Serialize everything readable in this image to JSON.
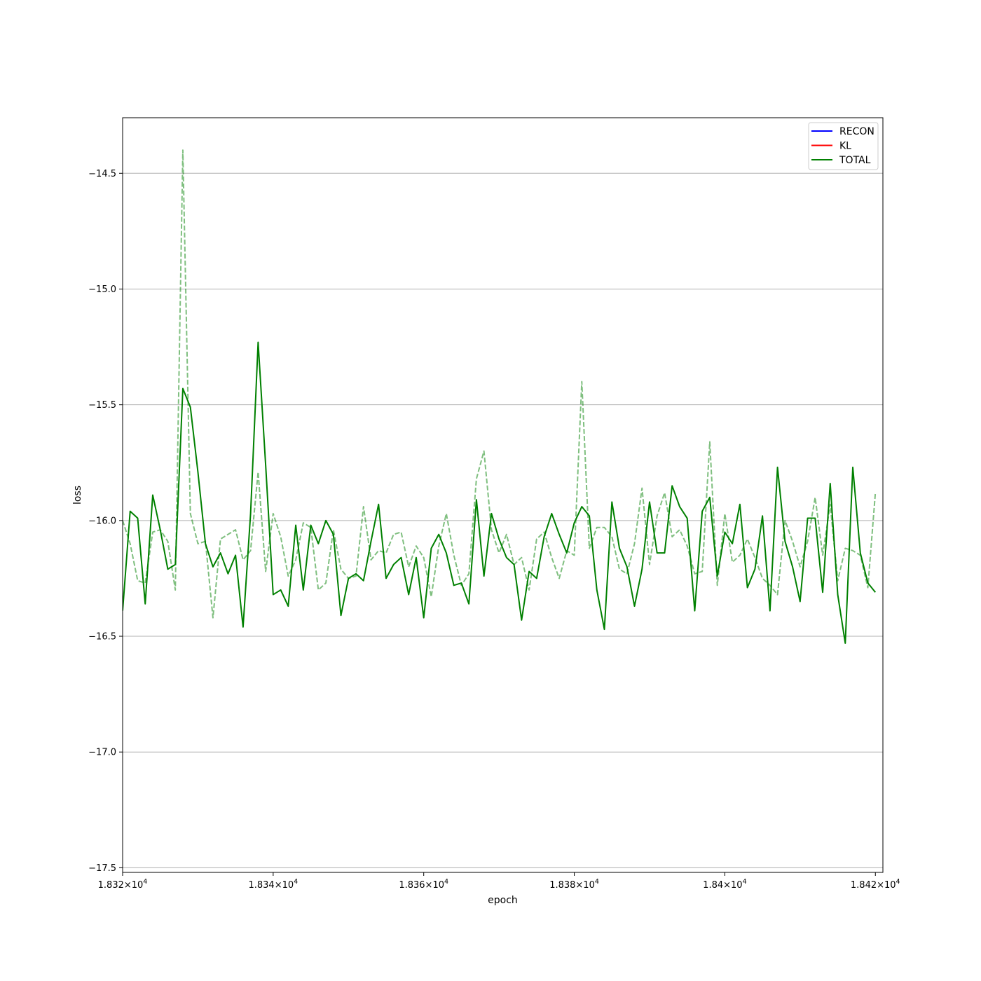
{
  "chart_data": {
    "type": "line",
    "title": "",
    "xlabel": "epoch",
    "ylabel": "loss",
    "xlim": [
      18320,
      18421
    ],
    "ylim": [
      -17.52,
      -14.26
    ],
    "grid": "y",
    "legend_position": "top-right",
    "x_ticks": [
      {
        "value": 18320,
        "mantissa": "1.832",
        "exponent": "4"
      },
      {
        "value": 18340,
        "mantissa": "1.834",
        "exponent": "4"
      },
      {
        "value": 18360,
        "mantissa": "1.836",
        "exponent": "4"
      },
      {
        "value": 18380,
        "mantissa": "1.838",
        "exponent": "4"
      },
      {
        "value": 18400,
        "mantissa": "1.84",
        "exponent": "4"
      },
      {
        "value": 18420,
        "mantissa": "1.842",
        "exponent": "4"
      }
    ],
    "x_tick_base": "10",
    "x_tick_times": "×",
    "y_ticks": [
      {
        "value": -14.5,
        "label": "−14.5"
      },
      {
        "value": -15.0,
        "label": "−15.0"
      },
      {
        "value": -15.5,
        "label": "−15.5"
      },
      {
        "value": -16.0,
        "label": "−16.0"
      },
      {
        "value": -16.5,
        "label": "−16.5"
      },
      {
        "value": -17.0,
        "label": "−17.0"
      },
      {
        "value": -17.5,
        "label": "−17.5"
      }
    ],
    "legend": [
      {
        "name": "RECON",
        "color": "#0000ff"
      },
      {
        "name": "KL",
        "color": "#ff0000"
      },
      {
        "name": "TOTAL",
        "color": "#008000"
      }
    ],
    "x_start": 18320,
    "x_step": 1,
    "series": [
      {
        "name": "TOTAL",
        "color": "#008000",
        "style": "solid",
        "values": [
          -16.39,
          -15.96,
          -15.99,
          -16.36,
          -15.89,
          -16.04,
          -16.21,
          -16.19,
          -15.43,
          -15.51,
          -15.79,
          -16.1,
          -16.2,
          -16.14,
          -16.23,
          -16.15,
          -16.46,
          -15.97,
          -15.23,
          -15.76,
          -16.32,
          -16.3,
          -16.37,
          -16.02,
          -16.3,
          -16.02,
          -16.1,
          -16.0,
          -16.06,
          -16.41,
          -16.25,
          -16.23,
          -16.26,
          -16.09,
          -15.93,
          -16.25,
          -16.19,
          -16.16,
          -16.32,
          -16.16,
          -16.42,
          -16.12,
          -16.06,
          -16.14,
          -16.28,
          -16.27,
          -16.36,
          -15.91,
          -16.24,
          -15.97,
          -16.08,
          -16.16,
          -16.19,
          -16.43,
          -16.22,
          -16.25,
          -16.07,
          -15.97,
          -16.06,
          -16.14,
          -16.01,
          -15.94,
          -15.98,
          -16.3,
          -16.47,
          -15.92,
          -16.12,
          -16.2,
          -16.37,
          -16.21,
          -15.92,
          -16.14,
          -16.14,
          -15.85,
          -15.94,
          -15.99,
          -16.39,
          -15.96,
          -15.9,
          -16.24,
          -16.05,
          -16.1,
          -15.93,
          -16.29,
          -16.21,
          -15.98,
          -16.39,
          -15.77,
          -16.09,
          -16.2,
          -16.35,
          -15.99,
          -15.99,
          -16.31,
          -15.84,
          -16.32,
          -16.53,
          -15.77,
          -16.14,
          -16.27,
          -16.31
        ]
      },
      {
        "name": "",
        "color": "#008000",
        "style": "dashed",
        "values": [
          -16.0,
          -16.1,
          -16.26,
          -16.27,
          -16.05,
          -16.04,
          -16.09,
          -16.3,
          -14.4,
          -15.97,
          -16.1,
          -16.09,
          -16.42,
          -16.08,
          -16.06,
          -16.04,
          -16.17,
          -16.13,
          -15.79,
          -16.22,
          -15.97,
          -16.07,
          -16.24,
          -16.17,
          -16.01,
          -16.03,
          -16.3,
          -16.27,
          -16.04,
          -16.21,
          -16.25,
          -16.24,
          -15.94,
          -16.17,
          -16.13,
          -16.14,
          -16.06,
          -16.05,
          -16.2,
          -16.11,
          -16.16,
          -16.33,
          -16.11,
          -15.97,
          -16.15,
          -16.28,
          -16.23,
          -15.82,
          -15.7,
          -16.04,
          -16.14,
          -16.06,
          -16.19,
          -16.16,
          -16.3,
          -16.08,
          -16.05,
          -16.16,
          -16.25,
          -16.13,
          -16.15,
          -15.4,
          -16.12,
          -16.03,
          -16.03,
          -16.07,
          -16.21,
          -16.23,
          -16.1,
          -15.86,
          -16.19,
          -15.98,
          -15.88,
          -16.07,
          -16.04,
          -16.11,
          -16.23,
          -16.22,
          -15.66,
          -16.28,
          -15.97,
          -16.18,
          -16.15,
          -16.08,
          -16.16,
          -16.25,
          -16.28,
          -16.32,
          -16.0,
          -16.09,
          -16.2,
          -16.09,
          -15.9,
          -16.15,
          -15.93,
          -16.26,
          -16.12,
          -16.13,
          -16.15,
          -16.29,
          -15.88
        ]
      }
    ]
  }
}
